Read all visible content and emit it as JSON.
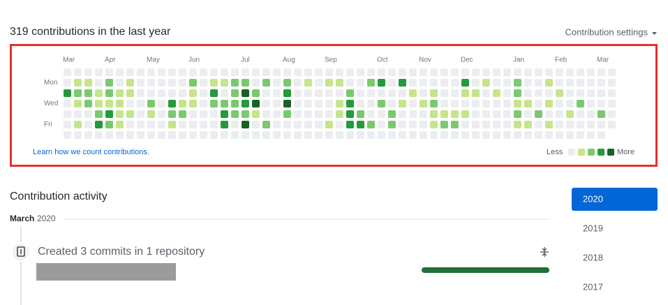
{
  "header": {
    "title": "319 contributions in the last year",
    "settings": "Contribution settings"
  },
  "contributions": {
    "week_labels": [
      "Mar",
      null,
      null,
      null,
      "Apr",
      null,
      null,
      null,
      "May",
      null,
      null,
      null,
      "Jun",
      null,
      null,
      null,
      null,
      "Jul",
      null,
      null,
      null,
      "Aug",
      null,
      null,
      null,
      "Sep",
      null,
      null,
      null,
      null,
      "Oct",
      null,
      null,
      null,
      "Nov",
      null,
      null,
      null,
      "Dec",
      null,
      null,
      null,
      null,
      "Jan",
      null,
      null,
      null,
      "Feb",
      null,
      null,
      null,
      "Mar",
      null
    ],
    "day_labels": [
      null,
      "Mon",
      null,
      "Wed",
      null,
      "Fri",
      null
    ],
    "colors": [
      "#ebedf0",
      "#c6e48b",
      "#7bc96f",
      "#239a3b",
      "#196127"
    ],
    "levels": [
      [
        0,
        0,
        0,
        0,
        0,
        0,
        0,
        0,
        0,
        0,
        0,
        0,
        0,
        0,
        0,
        0,
        0,
        0,
        0,
        0,
        0,
        0,
        0,
        0,
        0,
        0,
        0,
        0,
        0,
        0,
        0,
        0,
        0,
        0,
        0,
        0,
        0,
        0,
        0,
        0,
        0,
        0,
        0,
        0,
        0,
        0,
        0,
        0,
        0,
        0,
        0,
        0,
        0
      ],
      [
        0,
        1,
        1,
        0,
        2,
        0,
        1,
        0,
        0,
        0,
        0,
        0,
        2,
        0,
        1,
        1,
        2,
        2,
        0,
        2,
        0,
        2,
        0,
        1,
        0,
        1,
        1,
        0,
        0,
        2,
        3,
        0,
        3,
        0,
        0,
        0,
        0,
        0,
        3,
        0,
        1,
        0,
        0,
        2,
        0,
        0,
        1,
        0,
        0,
        0,
        0,
        0,
        0
      ],
      [
        3,
        2,
        2,
        1,
        2,
        1,
        1,
        0,
        0,
        0,
        0,
        0,
        1,
        0,
        3,
        0,
        2,
        4,
        2,
        0,
        0,
        3,
        0,
        0,
        0,
        0,
        0,
        2,
        0,
        0,
        0,
        0,
        0,
        1,
        0,
        1,
        0,
        0,
        1,
        1,
        0,
        1,
        0,
        2,
        0,
        0,
        0,
        1,
        0,
        0,
        0,
        0,
        0
      ],
      [
        0,
        1,
        2,
        1,
        1,
        1,
        0,
        0,
        2,
        0,
        3,
        1,
        1,
        0,
        2,
        2,
        2,
        3,
        4,
        0,
        0,
        4,
        0,
        0,
        0,
        0,
        1,
        3,
        0,
        0,
        2,
        0,
        1,
        0,
        1,
        2,
        0,
        0,
        0,
        0,
        0,
        0,
        0,
        1,
        1,
        0,
        1,
        0,
        0,
        2,
        0,
        0,
        0
      ],
      [
        0,
        0,
        0,
        2,
        3,
        1,
        1,
        0,
        1,
        0,
        2,
        2,
        0,
        0,
        0,
        3,
        2,
        2,
        1,
        0,
        0,
        2,
        0,
        0,
        0,
        0,
        1,
        3,
        2,
        0,
        0,
        2,
        0,
        0,
        0,
        1,
        1,
        1,
        1,
        0,
        0,
        0,
        0,
        2,
        0,
        2,
        0,
        0,
        1,
        0,
        0,
        2,
        0
      ],
      [
        0,
        1,
        0,
        3,
        2,
        1,
        0,
        0,
        0,
        0,
        1,
        0,
        0,
        0,
        0,
        3,
        0,
        4,
        0,
        2,
        0,
        0,
        0,
        0,
        0,
        1,
        0,
        3,
        3,
        2,
        0,
        2,
        0,
        0,
        0,
        1,
        2,
        2,
        0,
        0,
        0,
        0,
        0,
        1,
        1,
        0,
        1,
        0,
        0,
        0,
        0,
        0,
        0
      ],
      [
        0,
        0,
        0,
        0,
        0,
        0,
        0,
        0,
        0,
        0,
        0,
        0,
        0,
        0,
        0,
        0,
        0,
        0,
        0,
        0,
        0,
        0,
        0,
        0,
        0,
        0,
        0,
        0,
        0,
        0,
        0,
        0,
        0,
        0,
        0,
        0,
        0,
        0,
        0,
        0,
        0,
        0,
        0,
        0,
        0,
        0,
        0,
        0,
        0,
        0,
        0,
        0,
        null
      ]
    ],
    "footer_link": "Learn how we count contributions.",
    "legend": {
      "less": "Less",
      "more": "More"
    }
  },
  "activity": {
    "title": "Contribution activity",
    "month": "March",
    "year": "2020",
    "event": "Created 3 commits in 1 repository"
  },
  "years": [
    "2020",
    "2019",
    "2018",
    "2017"
  ],
  "selected_year": 0
}
